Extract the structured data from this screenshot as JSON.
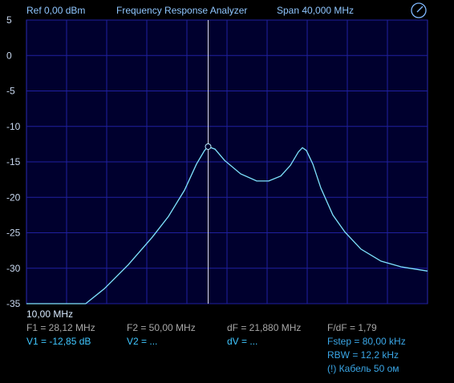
{
  "chart_data": {
    "type": "line",
    "header": {
      "ref": "Ref  0,00 dBm",
      "title": "Frequency Response Analyzer",
      "span": "Span 40,000 MHz"
    },
    "start_label": "10,00 MHz",
    "x": [
      10,
      15.9,
      17.76,
      20.16,
      22.56,
      24.16,
      25.76,
      26.96,
      27.76,
      28.12,
      28.8,
      29.76,
      31.36,
      32.96,
      34.16,
      35.36,
      36.32,
      37.12,
      37.52,
      37.92,
      38.56,
      39.36,
      40.56,
      41.76,
      43.36,
      45.36,
      47.36,
      50
    ],
    "series": [
      {
        "color": "#7fe4ff",
        "values": [
          -35,
          -35,
          -32.9,
          -29.5,
          -25.6,
          -22.7,
          -19,
          -15.3,
          -13.4,
          -12.85,
          -13.2,
          -14.8,
          -16.7,
          -17.7,
          -17.7,
          -17,
          -15.5,
          -13.6,
          -13,
          -13.4,
          -15.3,
          -18.7,
          -22.5,
          -24.9,
          -27.3,
          -29,
          -29.8,
          -30.4
        ]
      }
    ],
    "marker": {
      "x": 28.12,
      "y": -12.85
    },
    "xlim": [
      10,
      50
    ],
    "x_divisions": 10,
    "ylim": [
      -35,
      5
    ],
    "yticks": [
      5,
      0,
      -5,
      -10,
      -15,
      -20,
      -25,
      -30,
      -35
    ],
    "grid": true,
    "readouts": {
      "frequency": [
        "F1 = 28,12 MHz",
        "F2 = 50,00 MHz",
        "dF = 21,880 MHz",
        "F/dF = 1,79"
      ],
      "values": [
        "V1 = -12,85 dB",
        "V2 = ...",
        "dV = ...",
        "Fstep = 80,00 kHz"
      ],
      "settings": [
        "RBW = 12,2 kHz",
        "(!) Кабель 50 ом"
      ]
    }
  }
}
